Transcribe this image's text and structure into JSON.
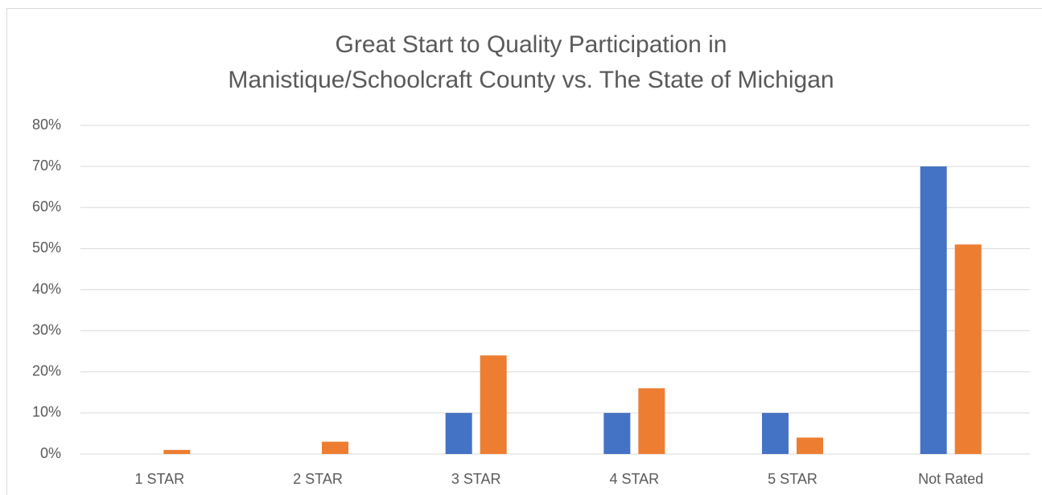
{
  "chart_data": {
    "type": "bar",
    "title": [
      "Great Start to Quality Participation in",
      "Manistique/Schoolcraft County vs. The State of Michigan"
    ],
    "categories": [
      "1 STAR",
      "2 STAR",
      "3 STAR",
      "4 STAR",
      "5 STAR",
      "Not Rated"
    ],
    "series": [
      {
        "color": "#4472c4",
        "values": [
          0,
          0,
          10,
          10,
          10,
          70
        ]
      },
      {
        "color": "#ed7d31",
        "values": [
          1,
          3,
          24,
          16,
          4,
          51
        ]
      }
    ],
    "ylim": [
      0,
      80
    ],
    "yticks": [
      {
        "value": 0,
        "label": "0%"
      },
      {
        "value": 10,
        "label": "10%"
      },
      {
        "value": 20,
        "label": "20%"
      },
      {
        "value": 30,
        "label": "30%"
      },
      {
        "value": 40,
        "label": "40%"
      },
      {
        "value": 50,
        "label": "50%"
      },
      {
        "value": 60,
        "label": "60%"
      },
      {
        "value": 70,
        "label": "70%"
      },
      {
        "value": 80,
        "label": "80%"
      }
    ],
    "grid": true
  }
}
